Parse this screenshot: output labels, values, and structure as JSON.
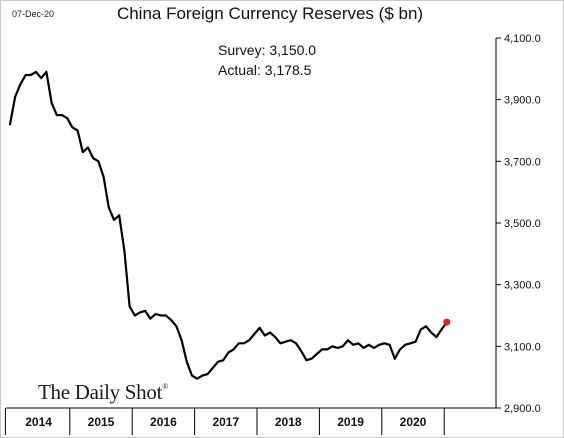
{
  "header": {
    "date": "07-Dec-20"
  },
  "chart_data": {
    "type": "line",
    "title": "China Foreign Currency Reserves ($ bn)",
    "xlabel": "",
    "ylabel": "",
    "ylim": [
      2900,
      4100
    ],
    "y_ticks": [
      2900,
      3100,
      3300,
      3500,
      3700,
      3900,
      4100
    ],
    "y_tick_labels": [
      "2,900.0",
      "3,100.0",
      "3,300.0",
      "3,500.0",
      "3,700.0",
      "3,900.0",
      "4,100.0"
    ],
    "x_labels": [
      "2014",
      "2015",
      "2016",
      "2017",
      "2018",
      "2019",
      "2020"
    ],
    "x_start": "2014-01",
    "x_end": "2020-11",
    "grid": false,
    "series": [
      {
        "values": [
          3820,
          3910,
          3950,
          3980,
          3980,
          3990,
          3970,
          3990,
          3890,
          3850,
          3850,
          3840,
          3810,
          3800,
          3730,
          3745,
          3710,
          3700,
          3650,
          3550,
          3510,
          3525,
          3410,
          3230,
          3200,
          3210,
          3215,
          3190,
          3205,
          3200,
          3200,
          3185,
          3165,
          3120,
          3050,
          3005,
          2995,
          3005,
          3010,
          3030,
          3050,
          3055,
          3080,
          3090,
          3110,
          3110,
          3120,
          3140,
          3160,
          3135,
          3145,
          3130,
          3110,
          3115,
          3120,
          3110,
          3085,
          3055,
          3060,
          3075,
          3090,
          3090,
          3100,
          3095,
          3100,
          3120,
          3105,
          3110,
          3095,
          3105,
          3095,
          3105,
          3110,
          3105,
          3060,
          3090,
          3105,
          3110,
          3115,
          3155,
          3165,
          3145,
          3130,
          3155,
          3178.5
        ]
      }
    ],
    "highlight": {
      "label": "Actual",
      "value": 3178.5,
      "color": "#e02020"
    },
    "line_color": "#000000"
  },
  "annotations": {
    "survey": "Survey: 3,150.0",
    "actual": "Actual:  3,178.5"
  },
  "branding": {
    "logo": "The Daily Shot",
    "logo_mark": "®"
  }
}
